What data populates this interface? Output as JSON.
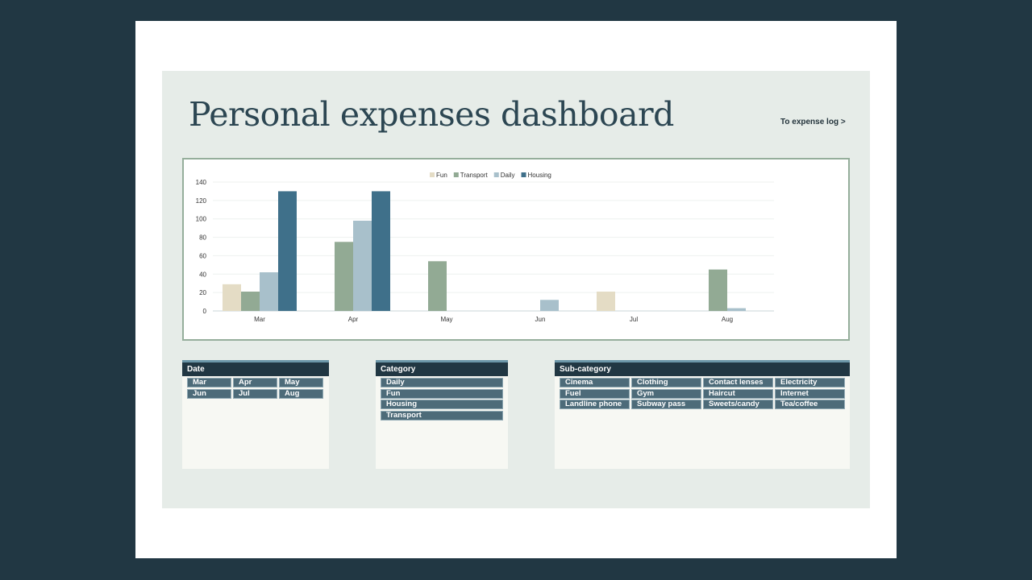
{
  "page": {
    "title": "Personal expenses dashboard",
    "link_label": "To expense log >"
  },
  "chart_data": {
    "type": "bar",
    "categories": [
      "Mar",
      "Apr",
      "May",
      "Jun",
      "Jul",
      "Aug"
    ],
    "series": [
      {
        "name": "Fun",
        "color": "#e4dcc5",
        "values": [
          29,
          null,
          null,
          null,
          21,
          null
        ]
      },
      {
        "name": "Transport",
        "color": "#92aa94",
        "values": [
          21,
          75,
          54,
          null,
          null,
          45
        ]
      },
      {
        "name": "Daily",
        "color": "#a8c0cb",
        "values": [
          42,
          98,
          null,
          12,
          null,
          3
        ]
      },
      {
        "name": "Housing",
        "color": "#3f708a",
        "values": [
          130,
          130,
          null,
          null,
          null,
          null
        ]
      }
    ],
    "yticks": [
      0,
      20,
      40,
      60,
      80,
      100,
      120,
      140
    ],
    "ylim": [
      0,
      140
    ],
    "legend_position": "top",
    "grid": true
  },
  "slicers": {
    "date": {
      "title": "Date",
      "items": [
        "Mar",
        "Apr",
        "May",
        "Jun",
        "Jul",
        "Aug"
      ]
    },
    "category": {
      "title": "Category",
      "items": [
        "Daily",
        "Fun",
        "Housing",
        "Transport"
      ]
    },
    "subcategory": {
      "title": "Sub-category",
      "items": [
        "Cinema",
        "Clothing",
        "Contact lenses",
        "Electricity",
        "Fuel",
        "Gym",
        "Haircut",
        "Internet",
        "Landline phone",
        "Subway pass",
        "Sweets/candy",
        "Tea/coffee"
      ]
    }
  }
}
